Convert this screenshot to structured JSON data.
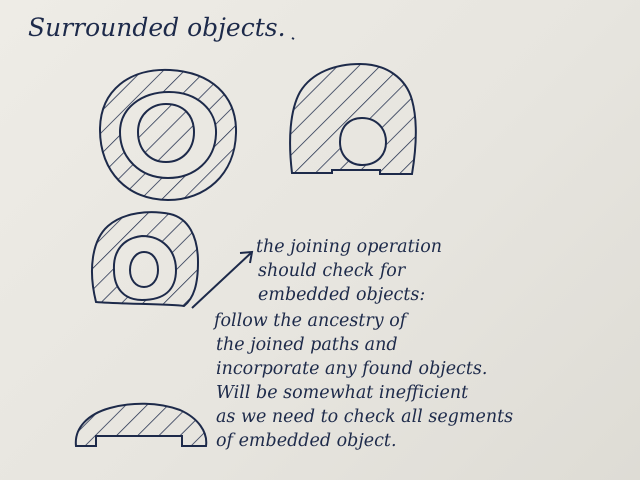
{
  "title": "Surrounded objects.",
  "note_lines": [
    "the joining operation",
    "should check for",
    "embedded objects:",
    "follow the ancestry of",
    "the joined paths and",
    "incorporate any found objects.",
    "Will be somewhat inefficient",
    "as we need to check all segments",
    "of embedded object."
  ],
  "colors": {
    "ink": "#1d2a4a",
    "paper": "#ebe9e3"
  }
}
